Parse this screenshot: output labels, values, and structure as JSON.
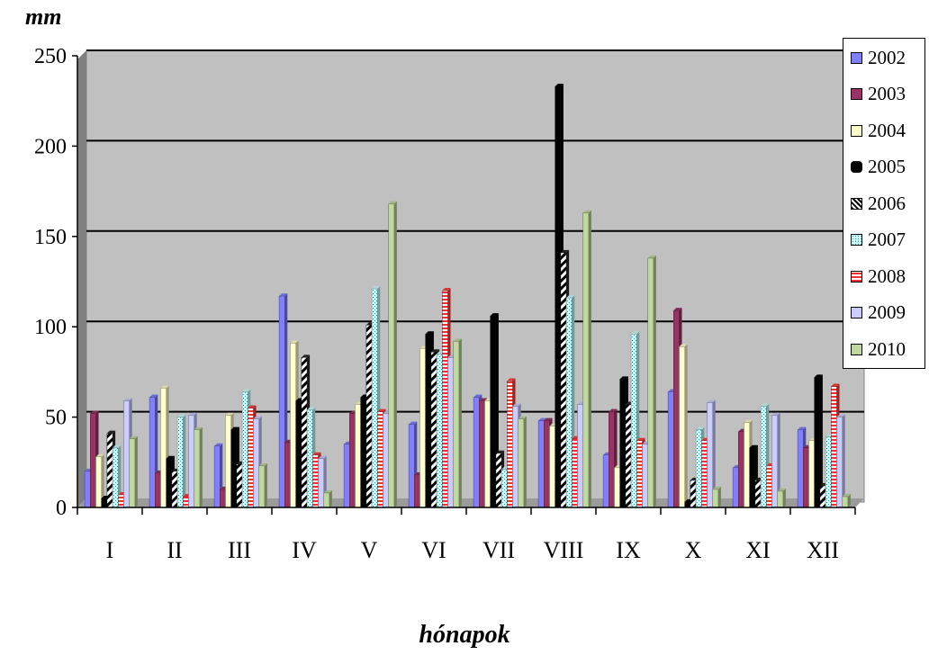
{
  "chart_data": {
    "type": "bar",
    "ylabel": "mm",
    "xlabel": "hónapok",
    "ylim": [
      0,
      250
    ],
    "yticks": [
      0,
      50,
      100,
      150,
      200,
      250
    ],
    "grid": true,
    "legend_position": "right",
    "categories": [
      "I",
      "II",
      "III",
      "IV",
      "V",
      "VI",
      "VII",
      "VIII",
      "IX",
      "X",
      "XI",
      "XII"
    ],
    "series": [
      {
        "name": "2002",
        "color": "#8080ff",
        "values": [
          20,
          61,
          34,
          117,
          35,
          46,
          61,
          48,
          29,
          64,
          22,
          43
        ]
      },
      {
        "name": "2003",
        "color": "#993366",
        "values": [
          52,
          19,
          10,
          36,
          52,
          18,
          59,
          48,
          53,
          109,
          42,
          33
        ]
      },
      {
        "name": "2004",
        "color": "#ffffcc",
        "values": [
          28,
          66,
          51,
          91,
          57,
          88,
          59,
          45,
          22,
          89,
          47,
          37
        ]
      },
      {
        "name": "2005",
        "color": "#000000",
        "values": [
          5,
          27,
          43,
          59,
          61,
          96,
          106,
          233,
          71,
          3,
          33,
          72
        ]
      },
      {
        "name": "2006",
        "color": "#2a2a2a",
        "values": [
          41,
          20,
          24,
          83,
          101,
          86,
          30,
          141,
          57,
          15,
          15,
          12
        ]
      },
      {
        "name": "2007",
        "color": "#ccffff",
        "values": [
          33,
          50,
          64,
          54,
          121,
          85,
          21,
          116,
          96,
          43,
          56,
          39
        ]
      },
      {
        "name": "2008",
        "color": "#ff4040",
        "values": [
          7,
          6,
          55,
          29,
          53,
          120,
          70,
          38,
          37,
          37,
          23,
          67
        ]
      },
      {
        "name": "2009",
        "color": "#ccccff",
        "values": [
          59,
          51,
          49,
          27,
          52,
          83,
          56,
          57,
          35,
          58,
          51,
          50
        ]
      },
      {
        "name": "2010",
        "color": "#c0d8a0",
        "values": [
          38,
          43,
          23,
          8,
          168,
          92,
          49,
          163,
          138,
          10,
          9,
          6
        ]
      }
    ]
  }
}
